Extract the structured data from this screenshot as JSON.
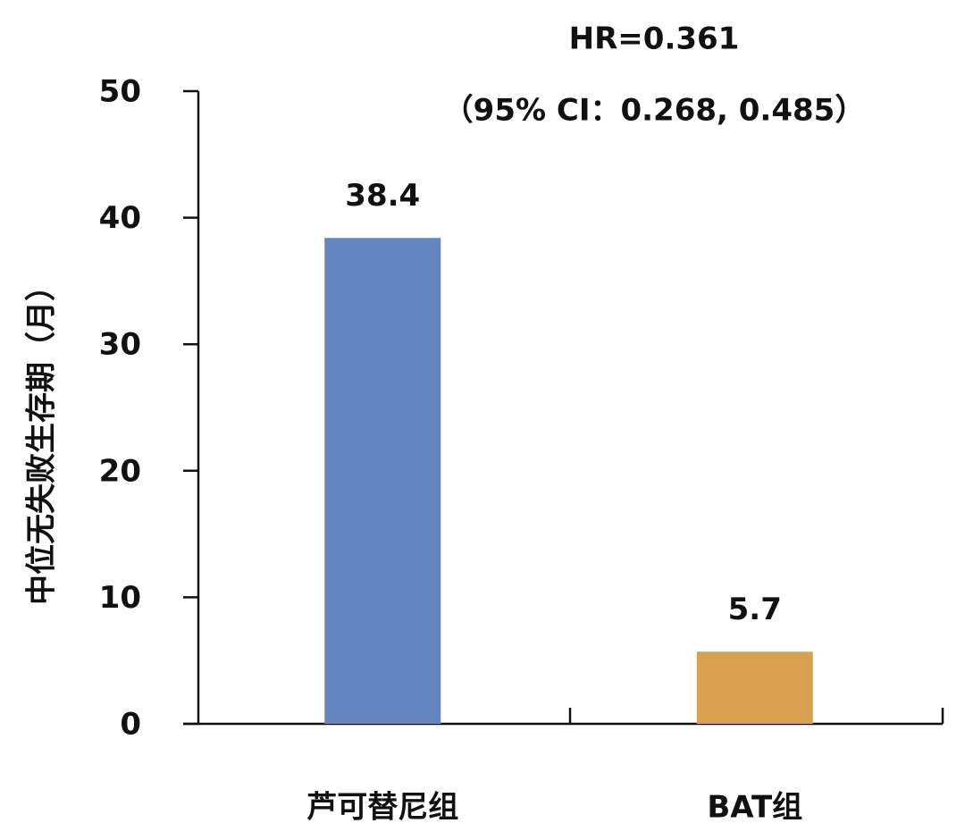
{
  "chart_data": {
    "type": "bar",
    "ylabel": "中位无失败生存期（月）",
    "annotations": [
      "HR=0.361",
      "（95% CI：0.268, 0.485）"
    ],
    "categories": [
      "芦可替尼组",
      "BAT组"
    ],
    "values": [
      38.4,
      5.7
    ],
    "colors": [
      "#6485bf",
      "#d9a050"
    ],
    "ylim": [
      0,
      50
    ],
    "yticks": [
      0,
      10,
      20,
      30,
      40,
      50
    ],
    "grid": false
  }
}
